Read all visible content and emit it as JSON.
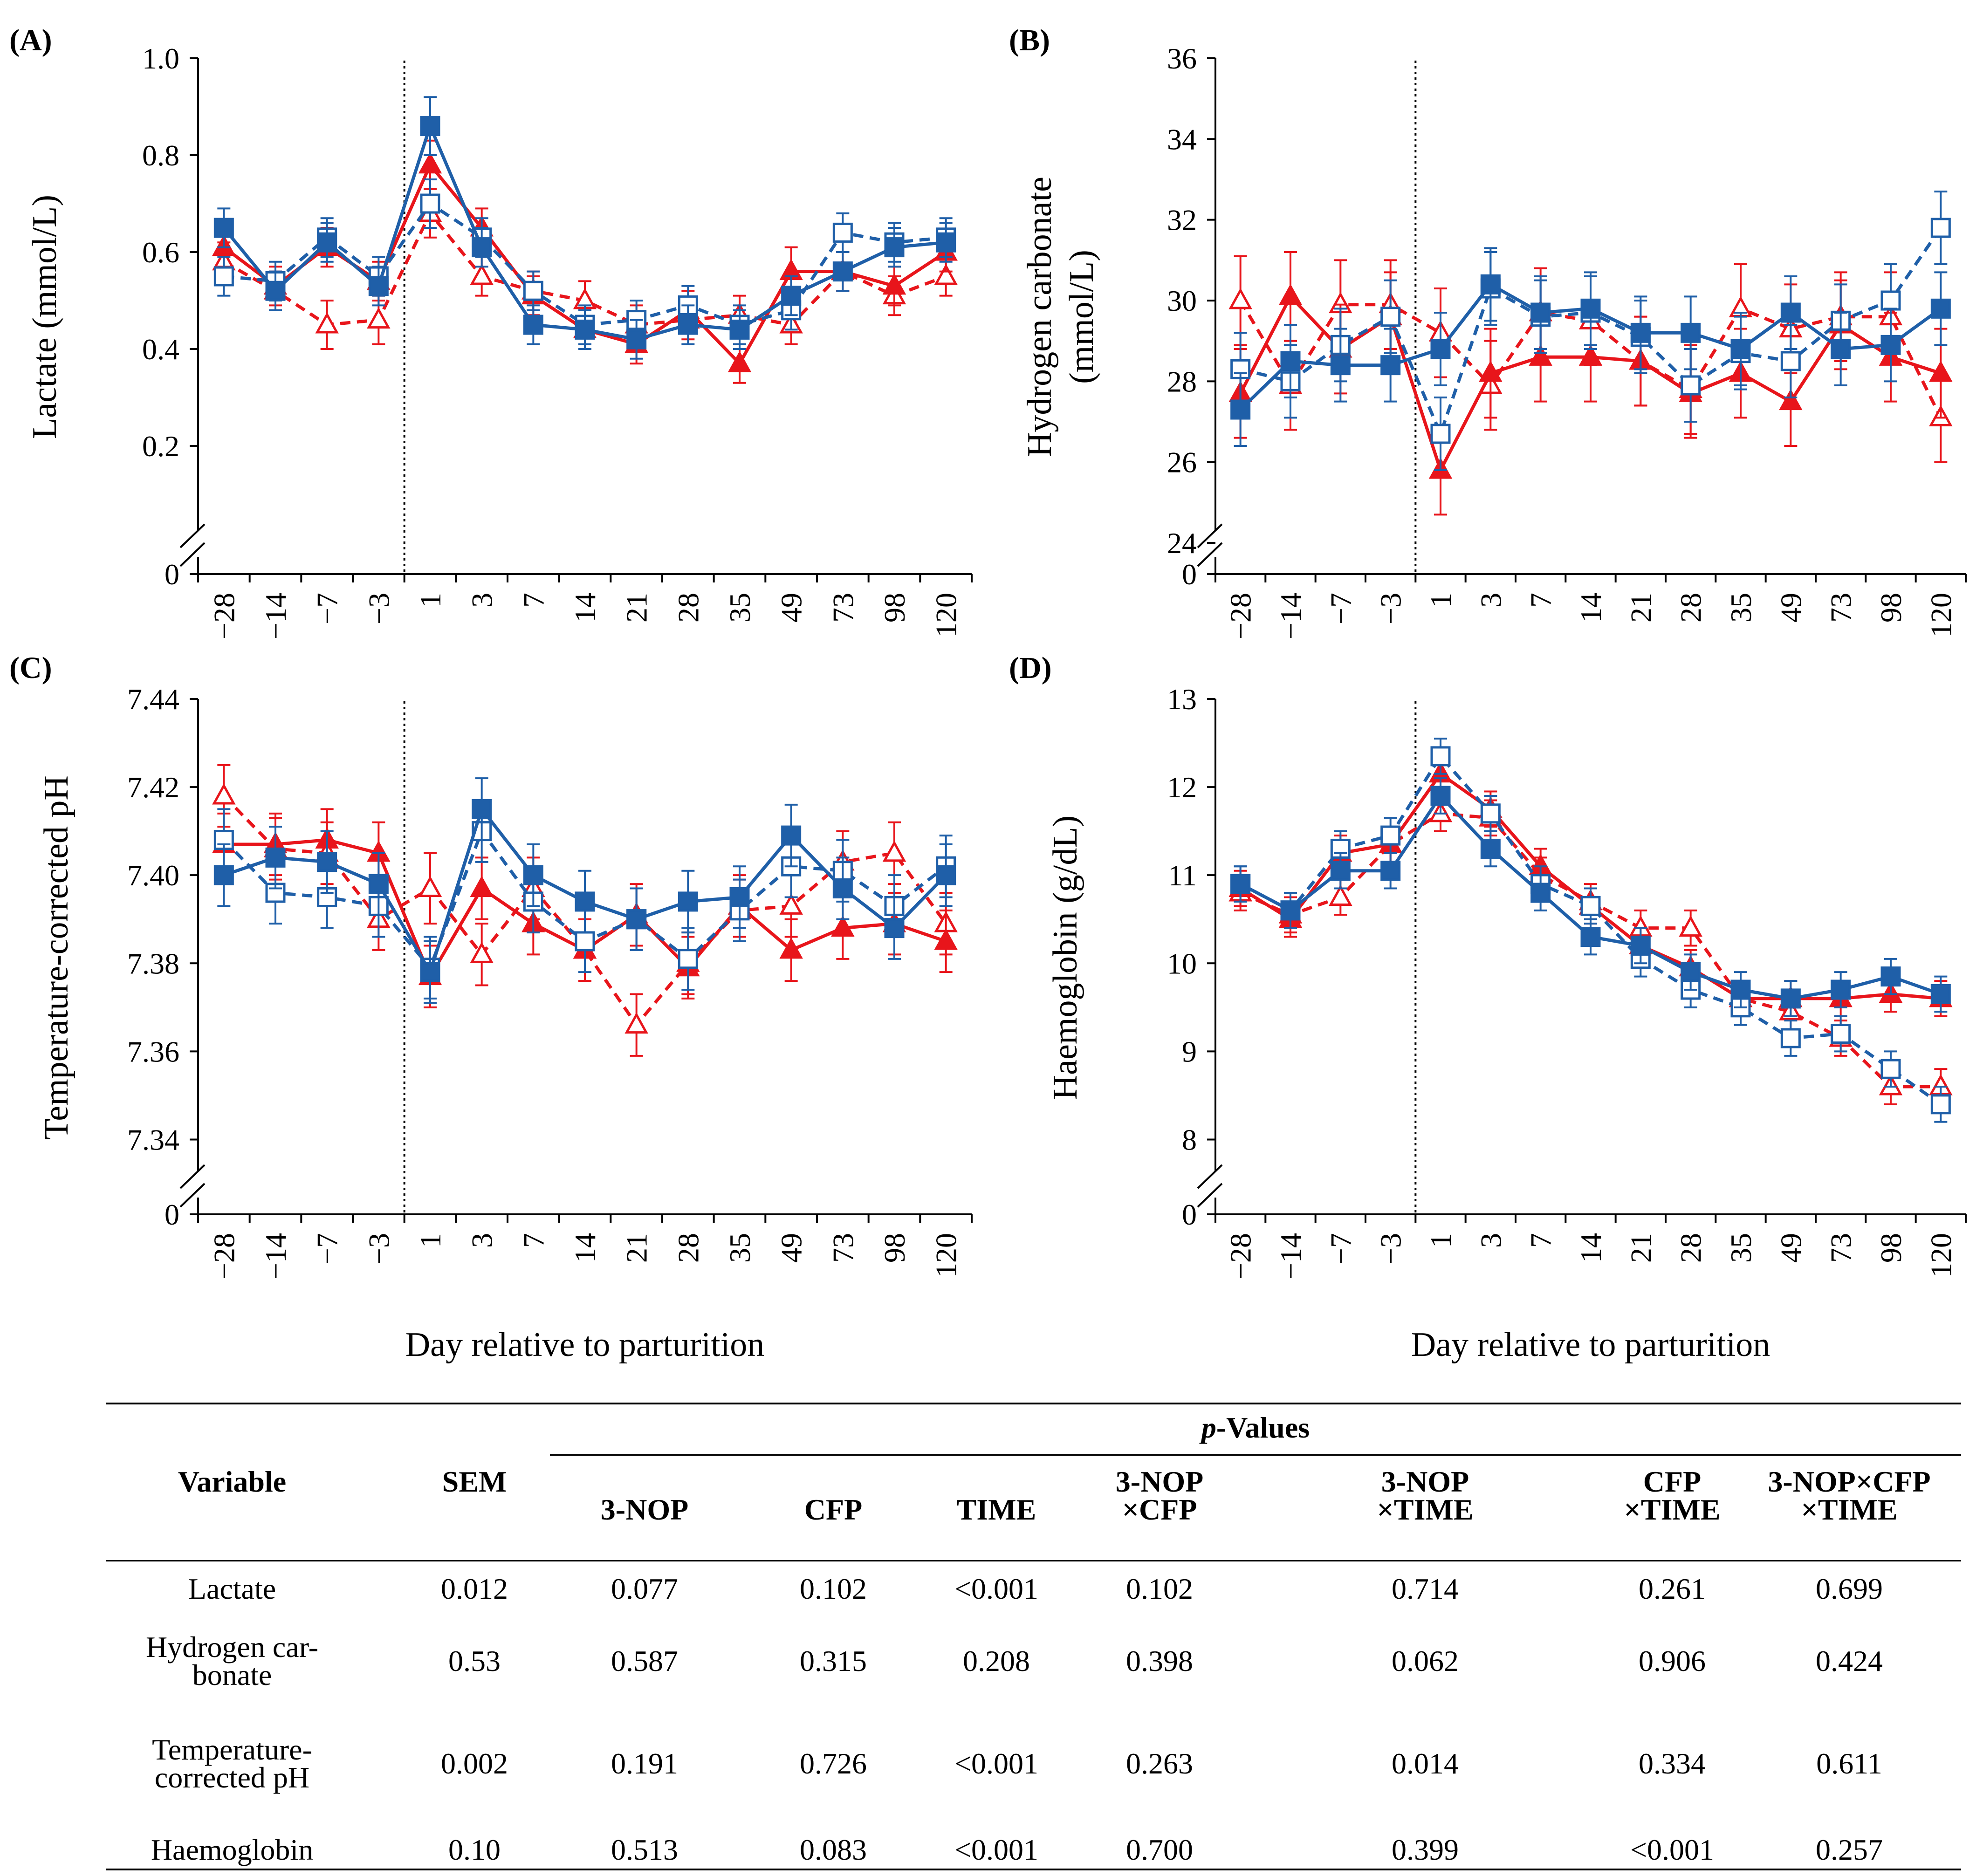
{
  "colors": {
    "blue": "#1F5FA8",
    "red": "#E8151B",
    "black": "#000000"
  },
  "markers": [
    "filled-square",
    "open-square",
    "filled-triangle",
    "open-triangle"
  ],
  "chart_data": [
    {
      "panel": "(A)",
      "type": "line",
      "ylabel": "Lactate (mmol/L)",
      "xlabel": "",
      "categories": [
        "−28",
        "−14",
        "−7",
        "−3",
        "1",
        "3",
        "7",
        "14",
        "21",
        "28",
        "35",
        "49",
        "73",
        "98",
        "120"
      ],
      "ylim": [
        0,
        1.0
      ],
      "yticks": [
        "0",
        "0.2",
        "0.4",
        "0.6",
        "0.8",
        "1.0"
      ],
      "ytick_values": [
        0,
        0.2,
        0.4,
        0.6,
        0.8,
        1.0
      ],
      "axis_break": true,
      "parturition_line_after_category": "−3",
      "series": [
        {
          "color": "blue",
          "marker": "filled-square",
          "dash": false,
          "values": [
            0.65,
            0.52,
            0.62,
            0.53,
            0.86,
            0.61,
            0.45,
            0.44,
            0.42,
            0.45,
            0.44,
            0.51,
            0.56,
            0.61,
            0.62
          ],
          "err": [
            0.04,
            0.04,
            0.04,
            0.04,
            0.06,
            0.04,
            0.04,
            0.04,
            0.04,
            0.04,
            0.04,
            0.04,
            0.04,
            0.04,
            0.04
          ]
        },
        {
          "color": "blue",
          "marker": "open-square",
          "dash": true,
          "values": [
            0.55,
            0.54,
            0.63,
            0.55,
            0.7,
            0.63,
            0.52,
            0.45,
            0.46,
            0.49,
            0.45,
            0.48,
            0.64,
            0.62,
            0.63
          ],
          "err": [
            0.04,
            0.04,
            0.04,
            0.04,
            0.05,
            0.04,
            0.04,
            0.04,
            0.04,
            0.04,
            0.04,
            0.04,
            0.04,
            0.04,
            0.04
          ]
        },
        {
          "color": "red",
          "marker": "filled-triangle",
          "dash": false,
          "values": [
            0.61,
            0.53,
            0.61,
            0.54,
            0.78,
            0.65,
            0.51,
            0.44,
            0.41,
            0.48,
            0.37,
            0.56,
            0.56,
            0.53,
            0.6
          ],
          "err": [
            0.04,
            0.04,
            0.04,
            0.04,
            0.05,
            0.04,
            0.04,
            0.04,
            0.04,
            0.04,
            0.04,
            0.05,
            0.04,
            0.04,
            0.04
          ]
        },
        {
          "color": "red",
          "marker": "open-triangle",
          "dash": true,
          "values": [
            0.58,
            0.52,
            0.45,
            0.46,
            0.68,
            0.55,
            0.52,
            0.5,
            0.45,
            0.46,
            0.47,
            0.45,
            0.56,
            0.51,
            0.55
          ],
          "err": [
            0.04,
            0.04,
            0.05,
            0.05,
            0.05,
            0.04,
            0.04,
            0.04,
            0.04,
            0.04,
            0.04,
            0.04,
            0.04,
            0.04,
            0.04
          ]
        }
      ]
    },
    {
      "panel": "(B)",
      "type": "line",
      "ylabel": "Hydrogen carbonate\n(mmol/L)",
      "xlabel": "",
      "categories": [
        "−28",
        "−14",
        "−7",
        "−3",
        "1",
        "3",
        "7",
        "14",
        "21",
        "28",
        "35",
        "49",
        "73",
        "98",
        "120"
      ],
      "ylim": [
        24,
        36
      ],
      "yticks": [
        "0",
        "24",
        "26",
        "28",
        "30",
        "32",
        "34",
        "36"
      ],
      "ytick_values": [
        0,
        24,
        26,
        28,
        30,
        32,
        34,
        36
      ],
      "axis_break": true,
      "parturition_line_after_category": "−3",
      "series": [
        {
          "color": "blue",
          "marker": "filled-square",
          "dash": false,
          "values": [
            27.3,
            28.5,
            28.4,
            28.4,
            28.8,
            30.4,
            29.7,
            29.8,
            29.2,
            29.2,
            28.8,
            29.7,
            28.8,
            28.9,
            29.8
          ],
          "err": [
            0.9,
            0.9,
            0.9,
            0.9,
            0.9,
            0.9,
            0.9,
            0.9,
            0.9,
            0.9,
            0.9,
            0.9,
            0.9,
            0.9,
            0.9
          ]
        },
        {
          "color": "blue",
          "marker": "open-square",
          "dash": true,
          "values": [
            28.3,
            28.0,
            28.9,
            29.6,
            26.7,
            30.3,
            29.6,
            29.7,
            29.1,
            27.9,
            28.7,
            28.5,
            29.5,
            30.0,
            31.8
          ],
          "err": [
            0.9,
            0.9,
            0.9,
            0.9,
            0.9,
            0.9,
            0.9,
            0.9,
            0.9,
            0.9,
            0.9,
            0.9,
            0.9,
            0.9,
            0.9
          ]
        },
        {
          "color": "red",
          "marker": "filled-triangle",
          "dash": false,
          "values": [
            27.7,
            30.1,
            28.8,
            29.6,
            25.8,
            28.2,
            28.6,
            28.6,
            28.5,
            27.7,
            28.2,
            27.5,
            29.4,
            28.6,
            28.2
          ],
          "err": [
            1.1,
            1.1,
            1.1,
            1.1,
            1.1,
            1.1,
            1.1,
            1.1,
            1.1,
            1.1,
            1.1,
            1.1,
            1.1,
            1.1,
            1.1
          ]
        },
        {
          "color": "red",
          "marker": "open-triangle",
          "dash": true,
          "values": [
            30.0,
            27.9,
            29.9,
            29.9,
            29.2,
            27.9,
            29.7,
            29.5,
            28.5,
            27.8,
            29.8,
            29.3,
            29.6,
            29.6,
            27.1
          ],
          "err": [
            1.1,
            1.1,
            1.1,
            1.1,
            1.1,
            1.1,
            1.1,
            1.1,
            1.1,
            1.1,
            1.1,
            1.1,
            1.1,
            1.1,
            1.1
          ]
        }
      ]
    },
    {
      "panel": "(C)",
      "type": "line",
      "ylabel": "Temperature-corrected pH",
      "xlabel": "Day relative to parturition",
      "categories": [
        "−28",
        "−14",
        "−7",
        "−3",
        "1",
        "3",
        "7",
        "14",
        "21",
        "28",
        "35",
        "49",
        "73",
        "98",
        "120"
      ],
      "ylim": [
        7.33,
        7.44
      ],
      "yticks": [
        "0",
        "7.34",
        "7.36",
        "7.38",
        "7.40",
        "7.42",
        "7.44"
      ],
      "ytick_values": [
        0,
        7.34,
        7.36,
        7.38,
        7.4,
        7.42,
        7.44
      ],
      "axis_break": true,
      "parturition_line_after_category": "−3",
      "series": [
        {
          "color": "blue",
          "marker": "filled-square",
          "dash": false,
          "values": [
            7.4,
            7.404,
            7.403,
            7.398,
            7.378,
            7.415,
            7.4,
            7.394,
            7.39,
            7.394,
            7.395,
            7.409,
            7.397,
            7.388,
            7.4
          ],
          "err": [
            0.007,
            0.007,
            0.007,
            0.007,
            0.007,
            0.007,
            0.007,
            0.007,
            0.007,
            0.007,
            0.007,
            0.007,
            0.007,
            0.007,
            0.007
          ]
        },
        {
          "color": "blue",
          "marker": "open-square",
          "dash": true,
          "values": [
            7.408,
            7.396,
            7.395,
            7.393,
            7.379,
            7.41,
            7.394,
            7.385,
            7.39,
            7.381,
            7.392,
            7.402,
            7.401,
            7.393,
            7.402
          ],
          "err": [
            0.007,
            0.007,
            0.007,
            0.007,
            0.007,
            0.007,
            0.007,
            0.007,
            0.007,
            0.007,
            0.007,
            0.007,
            0.007,
            0.007,
            0.007
          ]
        },
        {
          "color": "red",
          "marker": "filled-triangle",
          "dash": false,
          "values": [
            7.407,
            7.407,
            7.408,
            7.405,
            7.377,
            7.397,
            7.389,
            7.383,
            7.391,
            7.379,
            7.393,
            7.383,
            7.388,
            7.389,
            7.385
          ],
          "err": [
            0.007,
            0.007,
            0.007,
            0.007,
            0.007,
            0.007,
            0.007,
            0.007,
            0.007,
            0.007,
            0.007,
            0.007,
            0.007,
            0.007,
            0.007
          ]
        },
        {
          "color": "red",
          "marker": "open-triangle",
          "dash": true,
          "values": [
            7.418,
            7.406,
            7.405,
            7.39,
            7.397,
            7.382,
            7.397,
            7.383,
            7.366,
            7.38,
            7.392,
            7.393,
            7.403,
            7.405,
            7.389
          ],
          "err": [
            0.007,
            0.007,
            0.007,
            0.007,
            0.008,
            0.007,
            0.007,
            0.007,
            0.007,
            0.007,
            0.007,
            0.007,
            0.007,
            0.007,
            0.007
          ]
        }
      ]
    },
    {
      "panel": "(D)",
      "type": "line",
      "ylabel": "Haemoglobin (g/dL)",
      "xlabel": "Day relative to parturition",
      "categories": [
        "−28",
        "−14",
        "−7",
        "−3",
        "1",
        "3",
        "7",
        "14",
        "21",
        "28",
        "35",
        "49",
        "73",
        "98",
        "120"
      ],
      "ylim": [
        7.5,
        13
      ],
      "yticks": [
        "0",
        "8",
        "9",
        "10",
        "11",
        "12",
        "13"
      ],
      "ytick_values": [
        0,
        8,
        9,
        10,
        11,
        12,
        13
      ],
      "axis_break": true,
      "parturition_line_after_category": "−3",
      "series": [
        {
          "color": "blue",
          "marker": "filled-square",
          "dash": false,
          "values": [
            10.9,
            10.6,
            11.05,
            11.05,
            11.9,
            11.3,
            10.8,
            10.3,
            10.2,
            9.9,
            9.7,
            9.6,
            9.7,
            9.85,
            9.65
          ],
          "err": [
            0.2,
            0.2,
            0.2,
            0.2,
            0.2,
            0.2,
            0.2,
            0.2,
            0.2,
            0.2,
            0.2,
            0.2,
            0.2,
            0.2,
            0.2
          ]
        },
        {
          "color": "blue",
          "marker": "open-square",
          "dash": true,
          "values": [
            10.9,
            10.6,
            11.3,
            11.45,
            12.35,
            11.7,
            10.9,
            10.65,
            10.05,
            9.7,
            9.5,
            9.15,
            9.2,
            8.8,
            8.4
          ],
          "err": [
            0.2,
            0.2,
            0.2,
            0.2,
            0.2,
            0.2,
            0.2,
            0.2,
            0.2,
            0.2,
            0.2,
            0.2,
            0.2,
            0.2,
            0.2
          ]
        },
        {
          "color": "red",
          "marker": "filled-triangle",
          "dash": false,
          "values": [
            10.85,
            10.5,
            11.25,
            11.35,
            12.15,
            11.75,
            11.1,
            10.65,
            10.2,
            9.95,
            9.6,
            9.6,
            9.6,
            9.65,
            9.6
          ],
          "err": [
            0.2,
            0.2,
            0.2,
            0.2,
            0.2,
            0.2,
            0.2,
            0.2,
            0.2,
            0.2,
            0.2,
            0.2,
            0.2,
            0.2,
            0.2
          ]
        },
        {
          "color": "red",
          "marker": "open-triangle",
          "dash": true,
          "values": [
            10.8,
            10.55,
            10.75,
            11.35,
            11.7,
            11.65,
            11.0,
            10.7,
            10.4,
            10.4,
            9.6,
            9.45,
            9.15,
            8.6,
            8.6
          ],
          "err": [
            0.2,
            0.2,
            0.2,
            0.2,
            0.2,
            0.2,
            0.2,
            0.2,
            0.2,
            0.2,
            0.2,
            0.2,
            0.2,
            0.2,
            0.2
          ]
        }
      ]
    }
  ],
  "table": {
    "pvalues_heading": "p-Values",
    "pvalues_heading_italic": "p",
    "pvalues_heading_rest": "-Values",
    "columns": {
      "variable": "Variable",
      "sem": "SEM",
      "nop": "3-NOP",
      "cfp": "CFP",
      "time": "TIME",
      "nop_cfp_1": "3-NOP",
      "nop_cfp_2": "×CFP",
      "nop_time_1": "3-NOP",
      "nop_time_2": "×TIME",
      "cfp_time_1": "CFP",
      "cfp_time_2": "×TIME",
      "three_way_1": "3-NOP×CFP",
      "three_way_2": "×TIME"
    },
    "rows": [
      {
        "variable_1": "Lactate",
        "variable_2": "",
        "sem": "0.012",
        "nop": "0.077",
        "cfp": "0.102",
        "time": "<0.001",
        "nop_cfp": "0.102",
        "nop_time": "0.714",
        "cfp_time": "0.261",
        "three_way": "0.699"
      },
      {
        "variable_1": "Hydrogen car-",
        "variable_2": "bonate",
        "sem": "0.53",
        "nop": "0.587",
        "cfp": "0.315",
        "time": "0.208",
        "nop_cfp": "0.398",
        "nop_time": "0.062",
        "cfp_time": "0.906",
        "three_way": "0.424"
      },
      {
        "variable_1": "Temperature-",
        "variable_2": "corrected pH",
        "sem": "0.002",
        "nop": "0.191",
        "cfp": "0.726",
        "time": "<0.001",
        "nop_cfp": "0.263",
        "nop_time": "0.014",
        "cfp_time": "0.334",
        "three_way": "0.611"
      },
      {
        "variable_1": "Haemoglobin",
        "variable_2": "",
        "sem": "0.10",
        "nop": "0.513",
        "cfp": "0.083",
        "time": "<0.001",
        "nop_cfp": "0.700",
        "nop_time": "0.399",
        "cfp_time": "<0.001",
        "three_way": "0.257"
      }
    ]
  }
}
